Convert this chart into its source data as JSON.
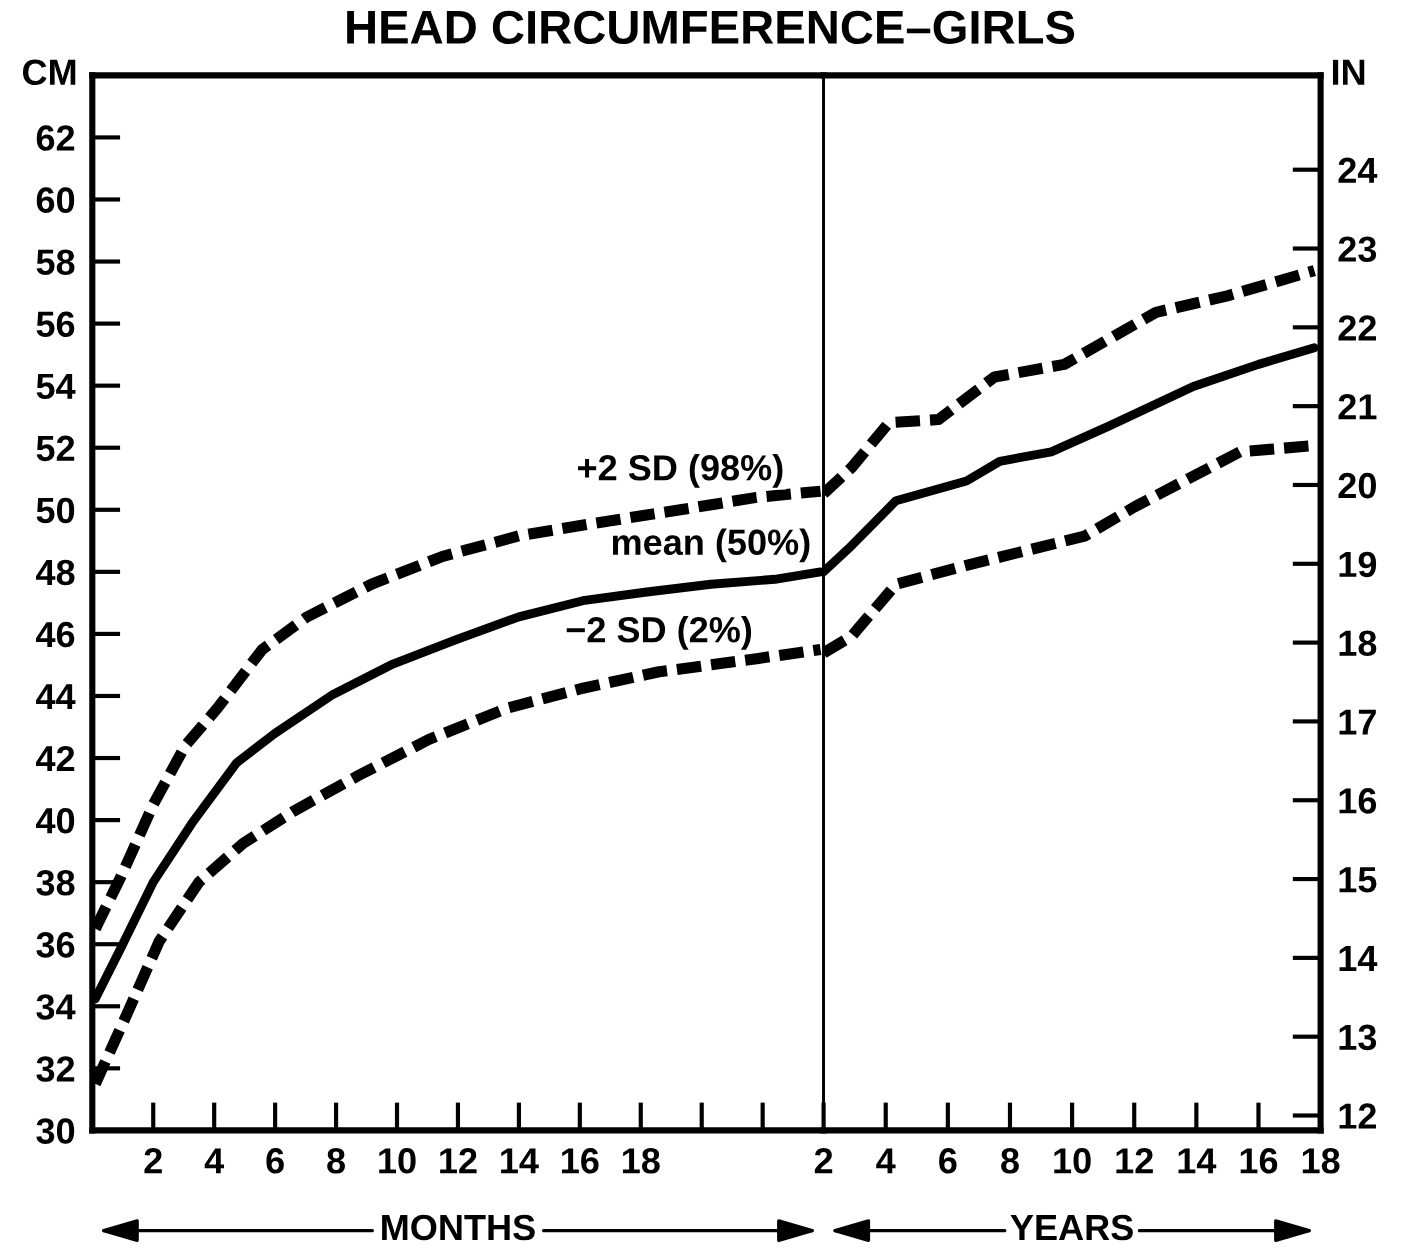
{
  "chart_data": [
    {
      "type": "line",
      "title": "HEAD CIRCUMFERENCE–GIRLS",
      "xlabel": "MONTHS",
      "ylabel": "CM",
      "xlim": [
        0,
        24
      ],
      "ylim": [
        30,
        64
      ],
      "xticks": [
        2,
        4,
        6,
        8,
        10,
        12,
        14,
        16,
        18,
        {
          "value": 20,
          "label": null
        },
        {
          "value": 22,
          "label": null
        }
      ],
      "yticks": [
        30,
        32,
        34,
        36,
        38,
        40,
        42,
        44,
        46,
        48,
        50,
        52,
        54,
        56,
        58,
        60,
        62
      ],
      "grid": false,
      "legend": false,
      "series": [
        {
          "name": "+2 SD (98%)",
          "color": "#000000",
          "line_style": "dashed",
          "x": [
            0.1,
            0.95,
            2.0,
            3.05,
            4.1,
            5.58,
            7.05,
            9.16,
            11.5,
            14.0,
            16.5,
            19.3,
            21.8,
            23.9
          ],
          "values": [
            36.5,
            38.2,
            40.5,
            42.4,
            43.6,
            45.5,
            46.55,
            47.6,
            48.5,
            49.16,
            49.57,
            50.0,
            50.4,
            50.6
          ]
        },
        {
          "name": "mean (50%)",
          "color": "#000000",
          "line_style": "solid",
          "x": [
            0.1,
            0.95,
            2.0,
            3.27,
            4.74,
            6.0,
            7.9,
            9.8,
            11.9,
            14.0,
            16.1,
            18.2,
            20.3,
            22.4,
            23.9
          ],
          "values": [
            34.24,
            35.9,
            38.0,
            39.9,
            41.85,
            42.8,
            44.05,
            45.0,
            45.8,
            46.55,
            47.07,
            47.35,
            47.6,
            47.76,
            48.0
          ]
        },
        {
          "name": "−2 SD (2%)",
          "color": "#000000",
          "line_style": "dashed",
          "x": [
            0.1,
            1.16,
            2.2,
            3.5,
            4.95,
            6.63,
            8.74,
            11.05,
            13.6,
            16.1,
            18.6,
            21.8,
            23.9
          ],
          "values": [
            31.5,
            33.8,
            36.1,
            38.0,
            39.25,
            40.3,
            41.44,
            42.6,
            43.6,
            44.25,
            44.78,
            45.2,
            45.5
          ]
        }
      ]
    },
    {
      "type": "line",
      "xlabel": "YEARS",
      "y2label": "IN",
      "xlim": [
        2,
        18
      ],
      "y2lim": [
        11.811,
        25.197
      ],
      "xticks": [
        2,
        4,
        6,
        8,
        10,
        12,
        14,
        16,
        18
      ],
      "y2ticks": [
        12,
        13,
        14,
        15,
        16,
        17,
        18,
        19,
        20,
        21,
        22,
        23,
        24
      ],
      "grid": false,
      "legend": false,
      "series": [
        {
          "color": "#000000",
          "axis": "y2",
          "line_style": "dashed",
          "x": [
            2,
            2.9,
            4.1,
            5.7,
            7.5,
            9.75,
            12.7,
            15.0,
            17.8
          ],
          "values": [
            19.89,
            20.22,
            20.79,
            20.83,
            21.37,
            21.53,
            22.19,
            22.4,
            22.72
          ]
        },
        {
          "color": "#000000",
          "axis": "y2",
          "line_style": "solid",
          "x": [
            2,
            2.9,
            4.33,
            6.6,
            7.67,
            9.33,
            11.2,
            13.9,
            16.0,
            17.8
          ],
          "values": [
            18.9,
            19.23,
            19.8,
            20.05,
            20.3,
            20.42,
            20.75,
            21.25,
            21.53,
            21.74
          ]
        },
        {
          "color": "#000000",
          "axis": "y2",
          "line_style": "dashed",
          "x": [
            2,
            2.9,
            4.33,
            6.6,
            10.4,
            12.0,
            15.4,
            17.8
          ],
          "values": [
            17.87,
            18.08,
            18.74,
            18.98,
            19.35,
            19.72,
            20.42,
            20.5
          ]
        }
      ]
    }
  ]
}
